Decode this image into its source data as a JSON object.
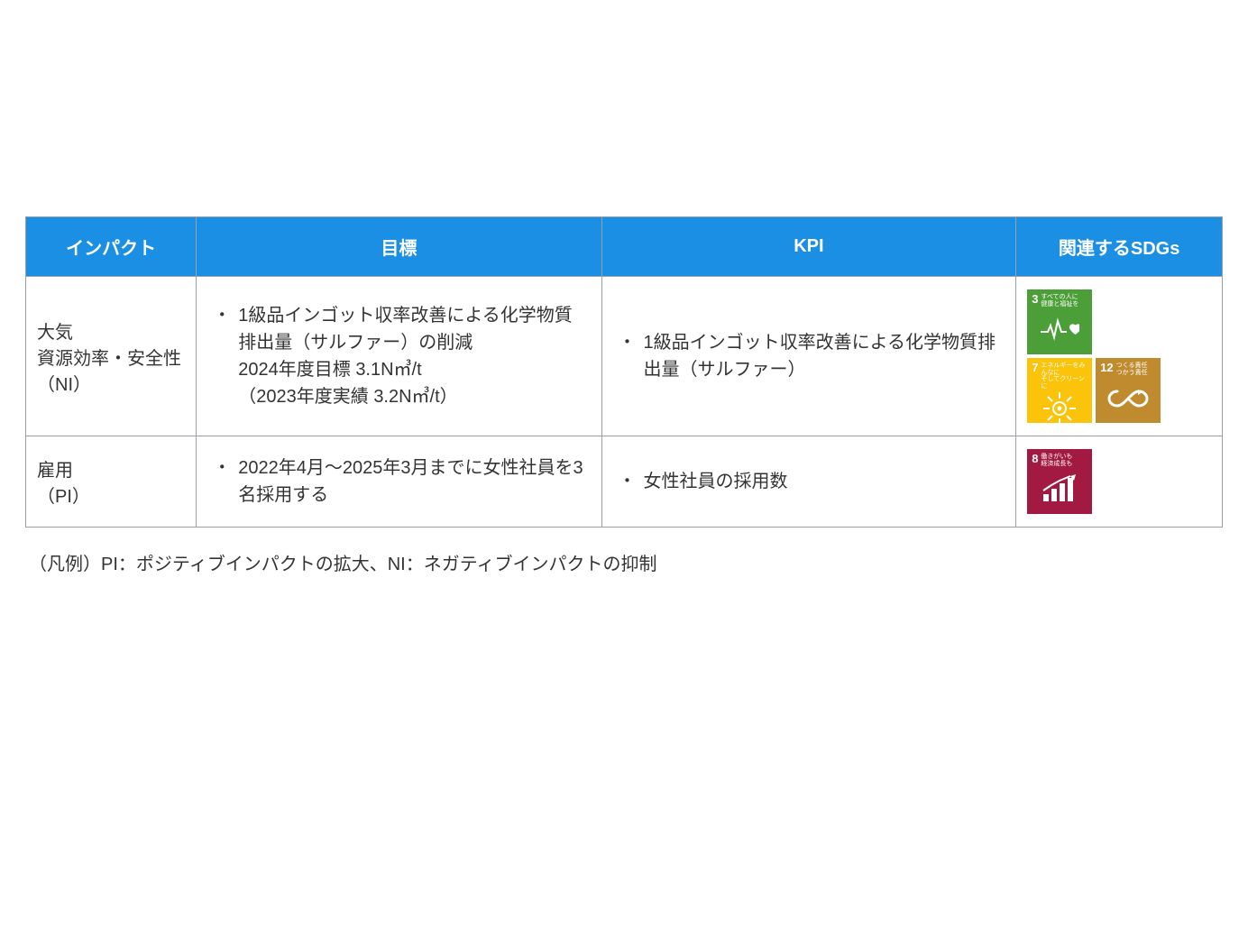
{
  "table": {
    "headers": {
      "impact": "インパクト",
      "target": "目標",
      "kpi": "KPI",
      "sdgs": "関連するSDGs"
    },
    "header_bg": "#1a8fe3",
    "header_fg": "#ffffff",
    "border_color": "#9aa0a6",
    "cell_fg": "#333333",
    "rows": [
      {
        "impact_line1": "大気",
        "impact_line2": "資源効率・安全性",
        "impact_line3": "（NI）",
        "target_bullet": "1級品インゴット収率改善による化学物質排出量（サルファー）の削減",
        "target_sub1": "2024年度目標 3.1N㎥/t",
        "target_sub2": "（2023年度実績 3.2N㎥/t）",
        "kpi_bullet": "1級品インゴット収率改善による化学物質排出量（サルファー）",
        "sdgs": [
          {
            "num": "3",
            "label": "すべての人に\n健康と福祉を",
            "color": "#4c9f38",
            "icon": "health"
          },
          {
            "num": "7",
            "label": "エネルギーをみんなに\nそしてクリーンに",
            "color": "#fcc30b",
            "icon": "sun"
          },
          {
            "num": "12",
            "label": "つくる責任\nつかう責任",
            "color": "#bf8b2e",
            "icon": "infinity"
          }
        ]
      },
      {
        "impact_line1": "雇用",
        "impact_line2": "（PI）",
        "impact_line3": "",
        "target_bullet": "2022年4月～2025年3月までに女性社員を3名採用する",
        "target_sub1": "",
        "target_sub2": "",
        "kpi_bullet": "女性社員の採用数",
        "sdgs": [
          {
            "num": "8",
            "label": "働きがいも\n経済成長も",
            "color": "#a21942",
            "icon": "growth"
          }
        ]
      }
    ]
  },
  "legend": "（凡例）PI：ポジティブインパクトの拡大、NI：ネガティブインパクトの抑制"
}
